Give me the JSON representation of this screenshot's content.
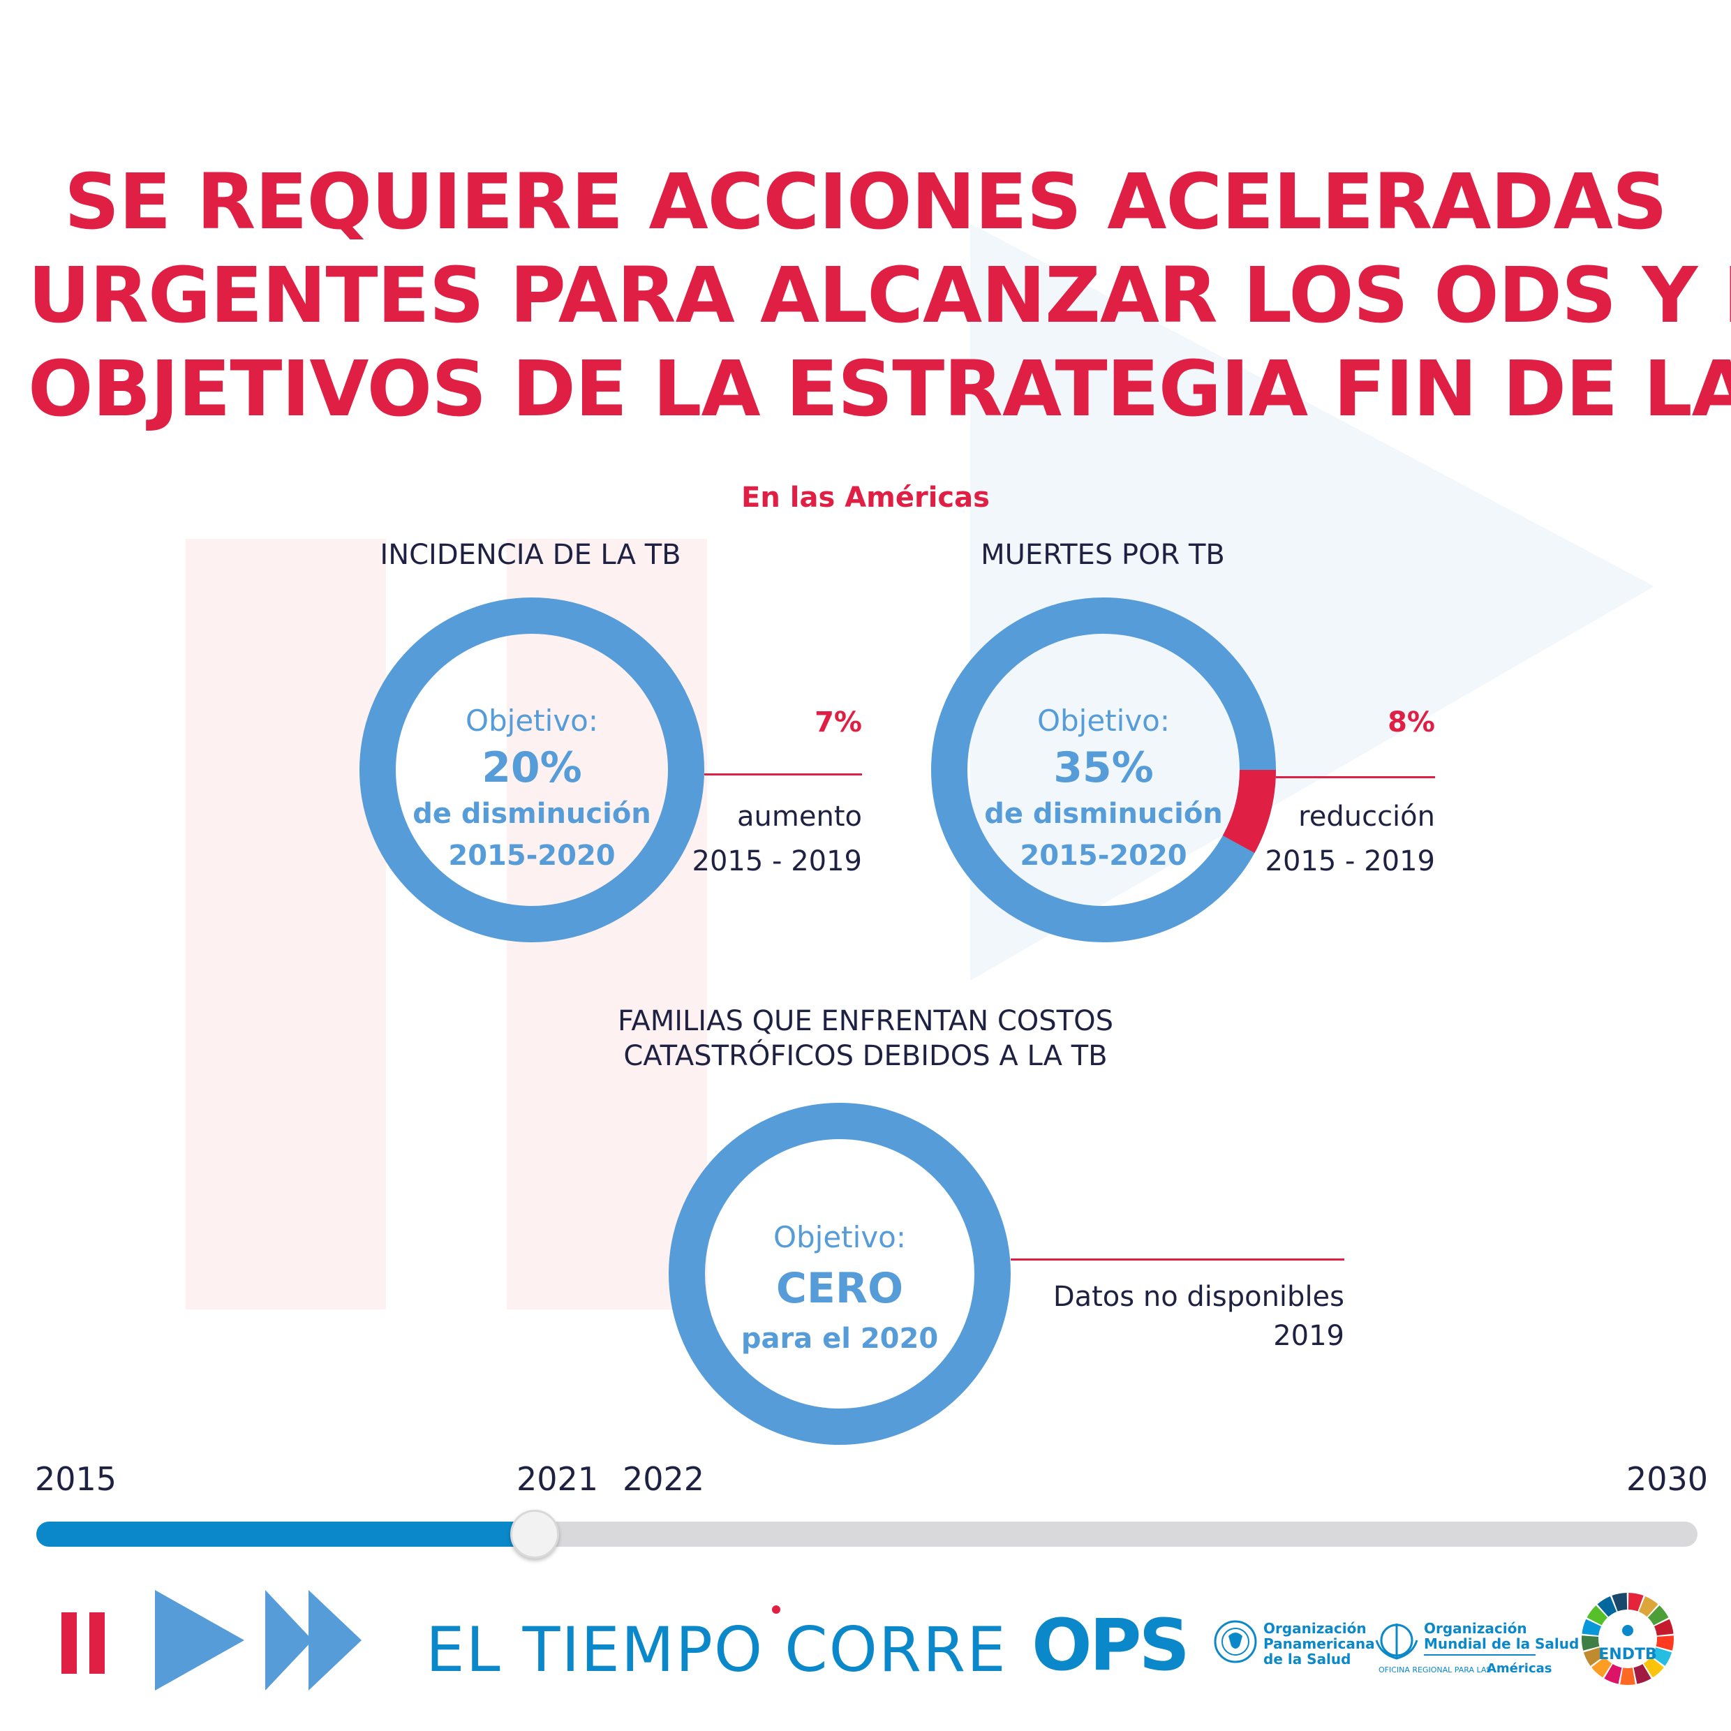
{
  "headline": {
    "line1": "SE REQUIERE ACCIONES ACELERADAS",
    "line2": "URGENTES PARA ALCANZAR LOS ODS Y LOS",
    "line3": "OBJETIVOS DE LA ESTRATEGIA FIN DE LA TB"
  },
  "region": "En las Américas",
  "incidence": {
    "title": "INCIDENCIA DE LA TB",
    "goal_label": "Objetivo:",
    "goal_value": "20%",
    "goal_text": "de disminución",
    "goal_period": "2015-2020",
    "result_value": "7%",
    "result_text": "aumento",
    "result_period": "2015 - 2019",
    "progress_fraction": 0
  },
  "deaths": {
    "title": "MUERTES POR TB",
    "goal_label": "Objetivo:",
    "goal_value": "35%",
    "goal_text": "de disminución",
    "goal_period": "2015-2020",
    "result_value": "8%",
    "result_text": "reducción",
    "result_period": "2015 - 2019",
    "progress_fraction": 0.08
  },
  "costs": {
    "title_line1": "FAMILIAS QUE ENFRENTAN COSTOS",
    "title_line2": "CATASTRÓFICOS DEBIDOS A LA TB",
    "goal_label": "Objetivo:",
    "goal_value": "CERO",
    "goal_text": "para el 2020",
    "result_text": "Datos no disponibles",
    "result_period": "2019"
  },
  "timeline": {
    "years": [
      "2015",
      "2021",
      "2022",
      "2030"
    ],
    "progress_fraction": 0.3
  },
  "footer": {
    "campaign": "EL TIEMPO CORRE",
    "ops_logo": "OPS",
    "paho_name": [
      "Organización",
      "Panamericana",
      "de la Salud"
    ],
    "who_name": [
      "Organización",
      "Mundial de la Salud"
    ],
    "who_region_small": "OFICINA REGIONAL PARA LAS",
    "who_region": "Américas",
    "endtb": "ENDTB"
  },
  "colors": {
    "accent_red": "#e01f44",
    "ring_blue": "#559cd8",
    "brand_blue": "#0b88c9",
    "text_dark": "#1f2142"
  }
}
